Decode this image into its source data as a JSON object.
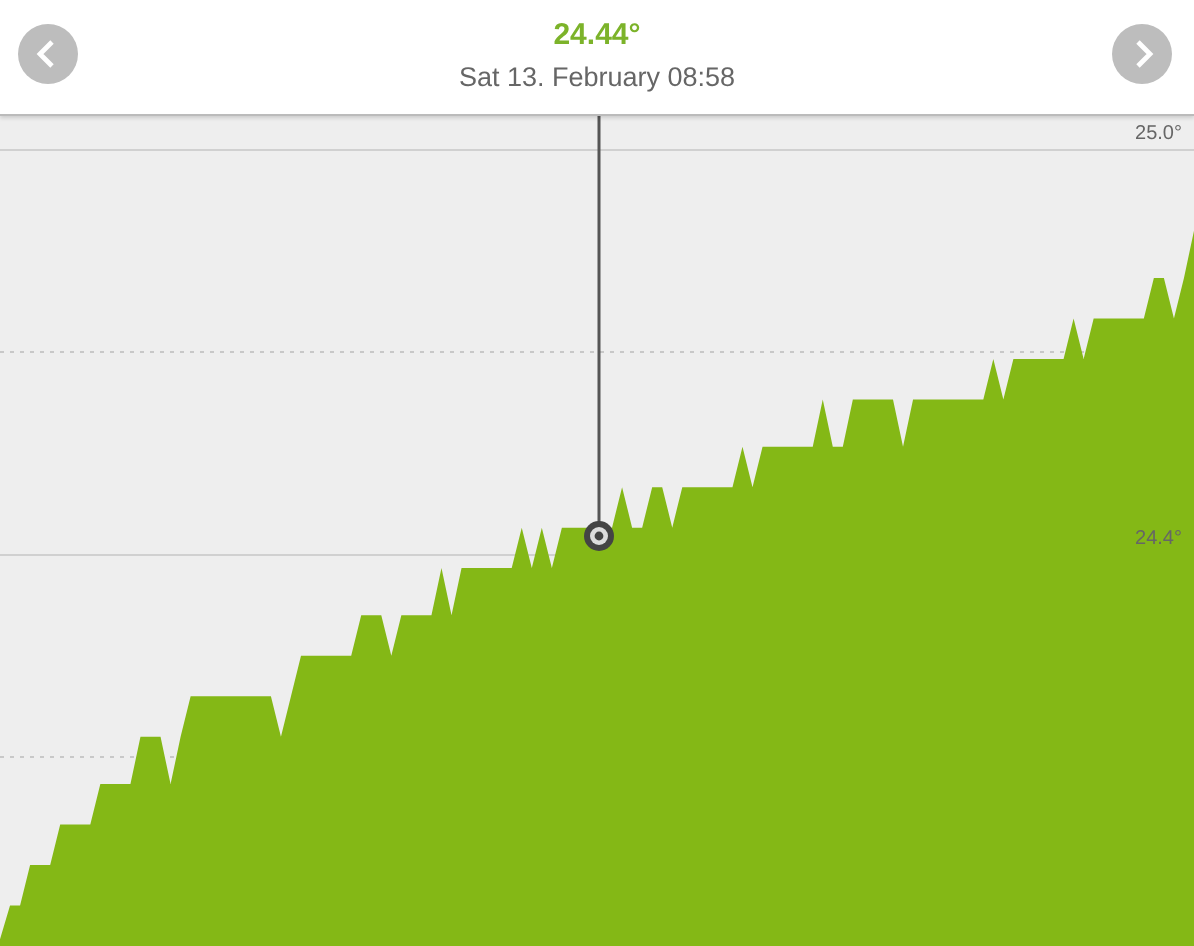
{
  "chart_data": {
    "type": "area",
    "title": "24.44°",
    "subtitle": "Sat 13. February 08:58",
    "categories": [
      null,
      null,
      null,
      null,
      null,
      null,
      null,
      null,
      null,
      null,
      null,
      null,
      null,
      null,
      null,
      null,
      null,
      null,
      null,
      null,
      null,
      null,
      null,
      null,
      null,
      null,
      null,
      null,
      null,
      null,
      null,
      null,
      null,
      null,
      null,
      null,
      null,
      null,
      null,
      null,
      null,
      null,
      null,
      null,
      null,
      null,
      null,
      null,
      null,
      null,
      null,
      null,
      null,
      null,
      null,
      null,
      null,
      null,
      null,
      null,
      null,
      null,
      null,
      null,
      null,
      null,
      null,
      null,
      null,
      null,
      null,
      null,
      null,
      null,
      null,
      null,
      null,
      null,
      null,
      null,
      null,
      null,
      null,
      null,
      null,
      null,
      null,
      null,
      null,
      null,
      null,
      null,
      null,
      null,
      null,
      null,
      null,
      null,
      null,
      null,
      null,
      null,
      null,
      null,
      null,
      null,
      null,
      null,
      null,
      null,
      null,
      null,
      null,
      null,
      null,
      null,
      null,
      null,
      null,
      null
    ],
    "series": [
      {
        "color": "#84b816",
        "values": [
          23.83,
          23.88,
          23.88,
          23.94,
          23.94,
          23.94,
          24.0,
          24.0,
          24.0,
          24.0,
          24.06,
          24.06,
          24.06,
          24.06,
          24.13,
          24.13,
          24.13,
          24.06,
          24.13,
          24.19,
          24.19,
          24.19,
          24.19,
          24.19,
          24.19,
          24.19,
          24.19,
          24.19,
          24.13,
          24.19,
          24.25,
          24.25,
          24.25,
          24.25,
          24.25,
          24.25,
          24.31,
          24.31,
          24.31,
          24.25,
          24.31,
          24.31,
          24.31,
          24.31,
          24.38,
          24.31,
          24.38,
          24.38,
          24.38,
          24.38,
          24.38,
          24.38,
          24.44,
          24.38,
          24.44,
          24.38,
          24.44,
          24.44,
          24.44,
          null,
          null,
          24.44,
          24.5,
          24.44,
          24.44,
          24.5,
          24.5,
          24.44,
          24.5,
          24.5,
          24.5,
          24.5,
          24.5,
          24.5,
          24.56,
          24.5,
          24.56,
          24.56,
          24.56,
          24.56,
          24.56,
          24.56,
          24.63,
          24.56,
          24.56,
          24.63,
          24.63,
          24.63,
          24.63,
          24.63,
          24.56,
          24.63,
          24.63,
          24.63,
          24.63,
          24.63,
          24.63,
          24.63,
          24.63,
          24.69,
          24.63,
          24.69,
          24.69,
          24.69,
          24.69,
          24.69,
          24.69,
          24.75,
          24.69,
          24.75,
          24.75,
          24.75,
          24.75,
          24.75,
          24.75,
          24.81,
          24.81,
          24.75,
          24.81,
          24.88
        ]
      }
    ],
    "ylim": [
      23.82,
      25.05
    ],
    "yticks": [
      {
        "value": 24.1,
        "label": null
      },
      {
        "value": 24.4,
        "label": "24.4°"
      },
      {
        "value": 24.7,
        "label": null
      },
      {
        "value": 25.0,
        "label": "25.0°"
      }
    ],
    "grid": "y"
  }
}
